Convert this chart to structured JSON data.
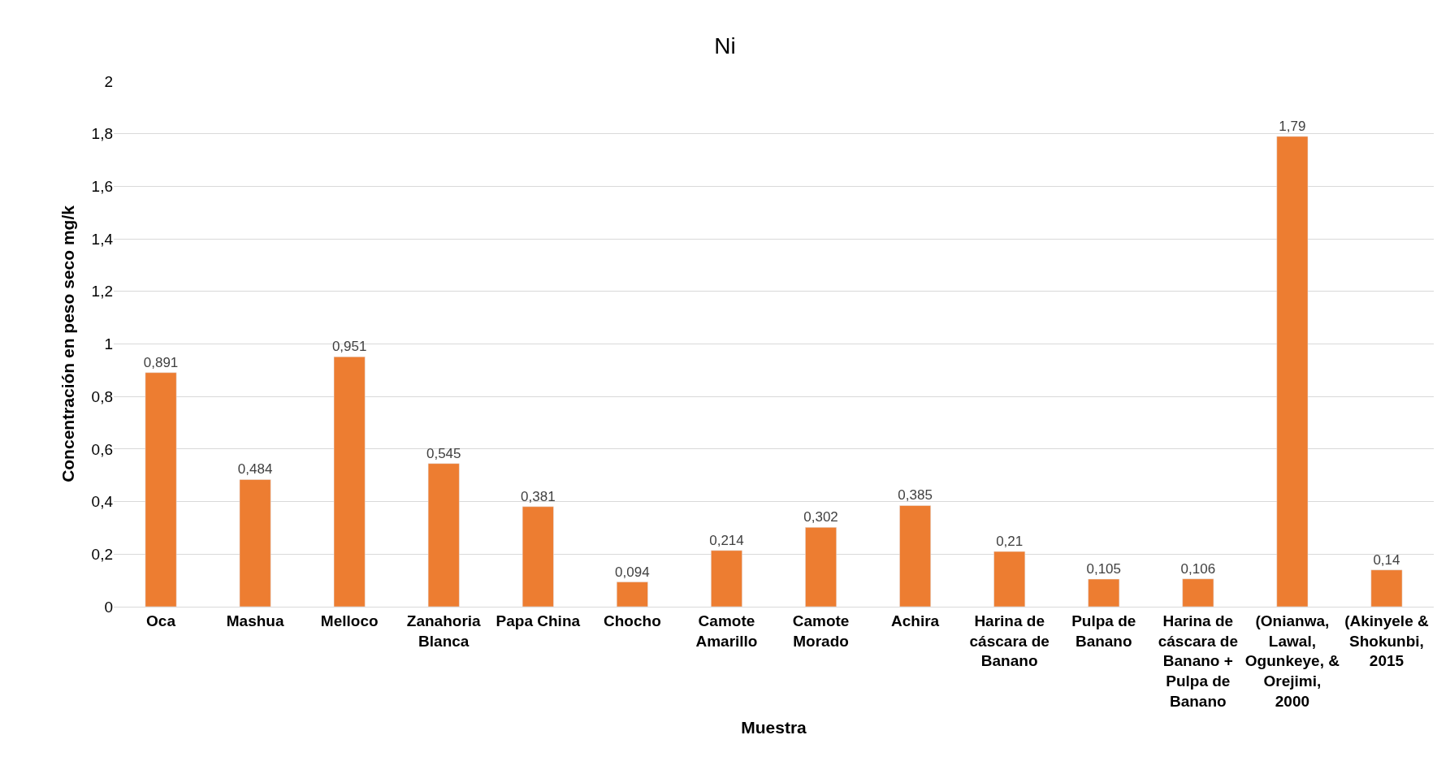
{
  "chart_data": {
    "type": "bar",
    "title": "Ni",
    "xlabel": "Muestra",
    "ylabel": "Concentración en peso seco mg/k",
    "categories": [
      "Oca",
      "Mashua",
      "Melloco",
      "Zanahoria Blanca",
      "Papa China",
      "Chocho",
      "Camote Amarillo",
      "Camote Morado",
      "Achira",
      "Harina de cáscara de Banano",
      "Pulpa de Banano",
      "Harina de cáscara de Banano + Pulpa de Banano",
      "(Onianwa, Lawal, Ogunkeye, & Orejimi, 2000",
      "(Akinyele & Shokunbi, 2015"
    ],
    "values": [
      0.891,
      0.484,
      0.951,
      0.545,
      0.381,
      0.094,
      0.214,
      0.302,
      0.385,
      0.21,
      0.105,
      0.106,
      1.79,
      0.14
    ],
    "value_labels": [
      "0,891",
      "0,484",
      "0,951",
      "0,545",
      "0,381",
      "0,094",
      "0,214",
      "0,302",
      "0,385",
      "0,21",
      "0,105",
      "0,106",
      "1,79",
      "0,14"
    ],
    "color": "#ed7d31",
    "ylim": [
      0,
      2
    ],
    "yticks": [
      0,
      {
        "value": 0.2,
        "label": "0,2"
      },
      {
        "value": 0.4,
        "label": "0,4"
      },
      {
        "value": 0.6,
        "label": "0,6"
      },
      {
        "value": 0.8,
        "label": "0,8"
      },
      1,
      {
        "value": 1.2,
        "label": "1,2"
      },
      {
        "value": 1.4,
        "label": "1,4"
      },
      {
        "value": 1.6,
        "label": "1,6"
      },
      {
        "value": 1.8,
        "label": "1,8"
      },
      2
    ],
    "grid": "y"
  }
}
